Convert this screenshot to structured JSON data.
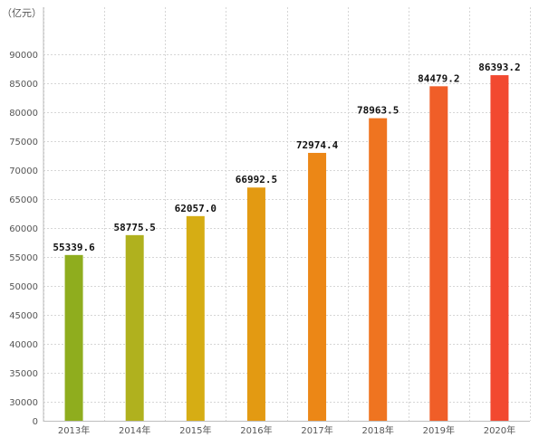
{
  "chart_data": {
    "type": "bar",
    "unit_label": "（亿元）",
    "categories": [
      "2013年",
      "2014年",
      "2015年",
      "2016年",
      "2017年",
      "2018年",
      "2019年",
      "2020年"
    ],
    "values": [
      55339.6,
      58775.5,
      62057.0,
      66992.5,
      72974.4,
      78963.5,
      84479.2,
      86393.2
    ],
    "value_labels": [
      "55339.6",
      "58775.5",
      "62057.0",
      "66992.5",
      "72974.4",
      "78963.5",
      "84479.2",
      "86393.2"
    ],
    "y_ticks": [
      0,
      30000,
      35000,
      40000,
      45000,
      50000,
      55000,
      60000,
      65000,
      70000,
      75000,
      80000,
      85000,
      90000
    ],
    "ylim": [
      0,
      93000
    ],
    "grid": true,
    "bar_colors": [
      "#8fad1e",
      "#b0b11e",
      "#d6ad14",
      "#e39a12",
      "#ec8716",
      "#ef7420",
      "#f05e28",
      "#f24930"
    ]
  }
}
